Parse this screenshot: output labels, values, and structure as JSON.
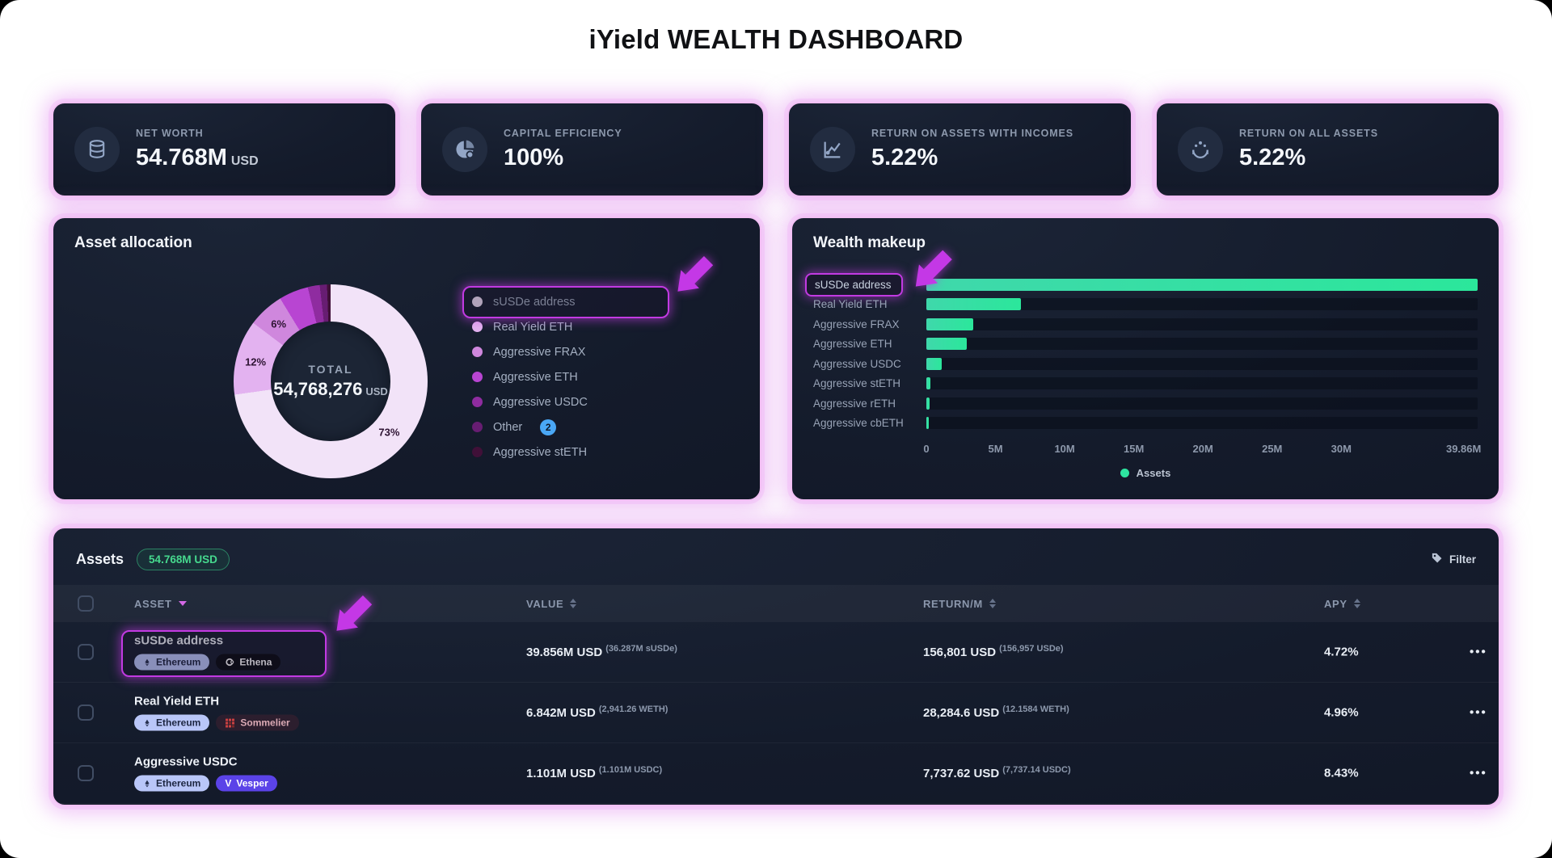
{
  "title": "iYield WEALTH DASHBOARD",
  "annotation_color": "#c438e6",
  "stats": [
    {
      "icon": "coins-icon",
      "label": "NET WORTH",
      "value": "54.768M",
      "unit": "USD"
    },
    {
      "icon": "pie-icon",
      "label": "CAPITAL EFFICIENCY",
      "value": "100%",
      "unit": ""
    },
    {
      "icon": "line-chart-icon",
      "label": "RETURN ON ASSETS WITH INCOMES",
      "value": "5.22%",
      "unit": ""
    },
    {
      "icon": "hands-icon",
      "label": "RETURN ON ALL ASSETS",
      "value": "5.22%",
      "unit": ""
    }
  ],
  "asset_allocation": {
    "title": "Asset allocation",
    "center": {
      "label": "TOTAL",
      "value": "54,768,276",
      "unit": "USD"
    },
    "legend": [
      {
        "label": "sUSDe address",
        "color": "#f2e3f8",
        "highlighted": true
      },
      {
        "label": "Real Yield ETH",
        "color": "#e3b2f0"
      },
      {
        "label": "Aggressive FRAX",
        "color": "#cf87dd"
      },
      {
        "label": "Aggressive ETH",
        "color": "#b845d2"
      },
      {
        "label": "Aggressive USDC",
        "color": "#8f2ca0"
      },
      {
        "label": "Other",
        "color": "#671d72",
        "count_badge": "2"
      },
      {
        "label": "Aggressive stETH",
        "color": "#401038"
      }
    ]
  },
  "wealth_makeup": {
    "title": "Wealth makeup",
    "legend_label": "Assets",
    "bar_color": "#2ee5a0",
    "highlighted_category": "sUSDe address"
  },
  "assets_table": {
    "title": "Assets",
    "total_badge": "54.768M USD",
    "filter_label": "Filter",
    "columns": [
      "ASSET",
      "VALUE",
      "RETURN/M",
      "APY"
    ],
    "rows": [
      {
        "name": "sUSDe address",
        "highlight": true,
        "badges": [
          {
            "label": "Ethereum",
            "type": "ethereum"
          },
          {
            "label": "Ethena",
            "type": "ethena"
          }
        ],
        "value": "39.856M USD",
        "value_sub": "(36.287M sUSDe)",
        "return_m": "156,801 USD",
        "return_sub": "(156,957 USDe)",
        "apy": "4.72%"
      },
      {
        "name": "Real Yield ETH",
        "highlight": false,
        "badges": [
          {
            "label": "Ethereum",
            "type": "ethereum"
          },
          {
            "label": "Sommelier",
            "type": "sommelier"
          }
        ],
        "value": "6.842M USD",
        "value_sub": "(2,941.26 WETH)",
        "return_m": "28,284.6 USD",
        "return_sub": "(12.1584 WETH)",
        "apy": "4.96%"
      },
      {
        "name": "Aggressive USDC",
        "highlight": false,
        "badges": [
          {
            "label": "Ethereum",
            "type": "ethereum"
          },
          {
            "label": "Vesper",
            "type": "vesper"
          }
        ],
        "value": "1.101M USD",
        "value_sub": "(1.101M USDC)",
        "return_m": "7,737.62 USD",
        "return_sub": "(7,737.14 USDC)",
        "apy": "8.43%"
      }
    ]
  },
  "chart_data": [
    {
      "type": "pie",
      "title": "Asset allocation",
      "labels": [
        "sUSDe address",
        "Real Yield ETH",
        "Aggressive FRAX",
        "Aggressive ETH",
        "Aggressive USDC",
        "Other",
        "Aggressive stETH"
      ],
      "values_pct": [
        72.8,
        12.5,
        6.0,
        4.9,
        2.0,
        1.2,
        0.6
      ],
      "colors": [
        "#f2e3f8",
        "#e3b2f0",
        "#cf87dd",
        "#b845d2",
        "#8f2ca0",
        "#671d72",
        "#401038"
      ],
      "center_total": "54,768,276 USD",
      "shown_labels": [
        {
          "index": 0,
          "text": "73%"
        },
        {
          "index": 1,
          "text": "12%"
        },
        {
          "index": 2,
          "text": "6%"
        }
      ],
      "legend_position": "right",
      "donut": true
    },
    {
      "type": "bar",
      "orientation": "horizontal",
      "title": "Wealth makeup",
      "categories": [
        "sUSDe address",
        "Real Yield ETH",
        "Aggressive FRAX",
        "Aggressive ETH",
        "Aggressive USDC",
        "Aggressive stETH",
        "Aggressive rETH",
        "Aggressive cbETH"
      ],
      "values_musd": [
        39.856,
        6.842,
        3.4,
        2.9,
        1.101,
        0.3,
        0.25,
        0.2
      ],
      "xmax": 39.86,
      "xticks": [
        0,
        5,
        10,
        15,
        20,
        25,
        30,
        39.86
      ],
      "xtick_labels": [
        "0",
        "5M",
        "10M",
        "15M",
        "20M",
        "25M",
        "30M",
        "39.86M"
      ],
      "series_name": "Assets",
      "legend_position": "bottom",
      "grid": false
    }
  ]
}
